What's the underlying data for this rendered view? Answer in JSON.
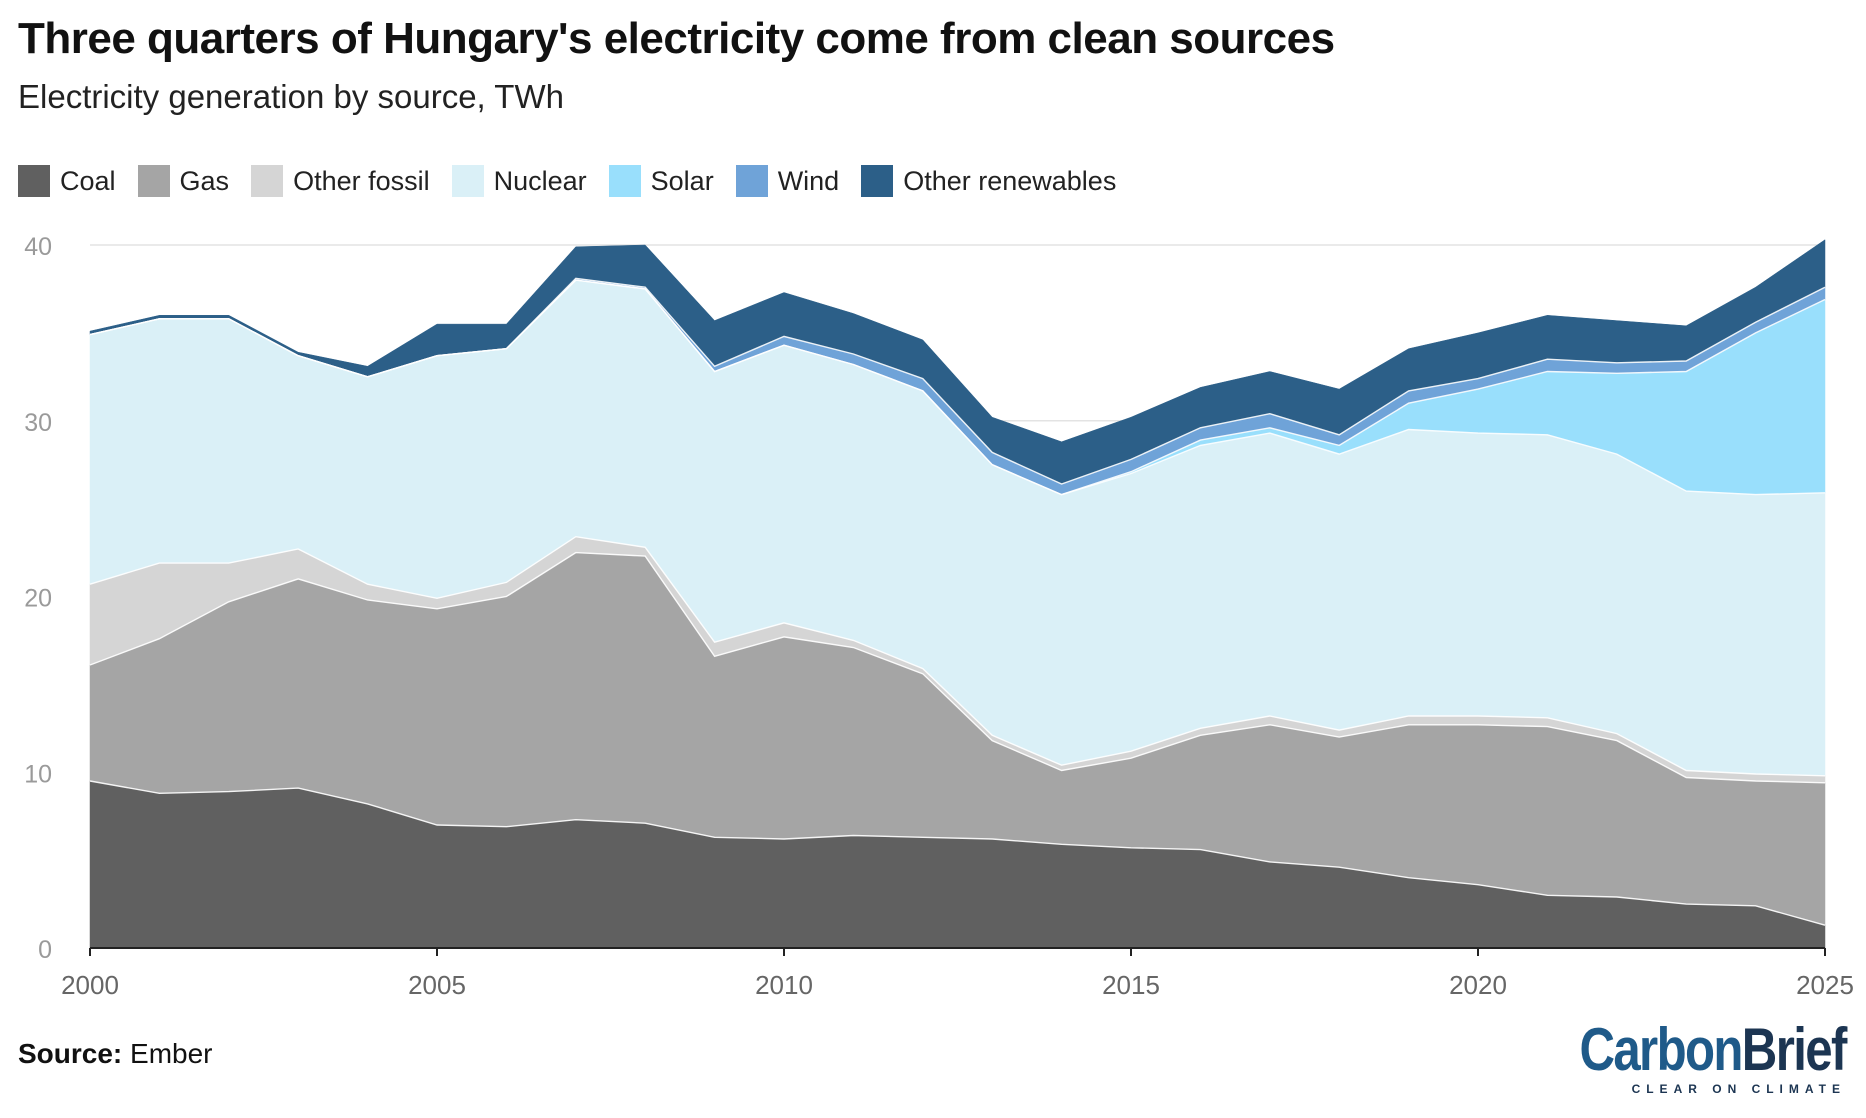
{
  "title": "Three quarters of Hungary's electricity come from clean sources",
  "subtitle": "Electricity generation by source, TWh",
  "source_label": "Source:",
  "source_value": "Ember",
  "logo": {
    "part1": "Carbon",
    "part2": "Brief",
    "tagline": "CLEAR ON CLIMATE"
  },
  "chart_data": {
    "type": "area",
    "stacked": true,
    "x": [
      2000,
      2001,
      2002,
      2003,
      2004,
      2005,
      2006,
      2007,
      2008,
      2009,
      2010,
      2011,
      2012,
      2013,
      2014,
      2015,
      2016,
      2017,
      2018,
      2019,
      2020,
      2021,
      2022,
      2023,
      2024,
      2025
    ],
    "ylim": [
      0,
      40
    ],
    "xlim": [
      2000,
      2025
    ],
    "y_ticks": [
      0,
      10,
      20,
      30,
      40
    ],
    "x_ticks": [
      2000,
      2005,
      2010,
      2015,
      2020,
      2025
    ],
    "grid": true,
    "legend_position": "top-left",
    "series": [
      {
        "name": "Coal",
        "color": "#606060",
        "values": [
          9.5,
          8.8,
          8.9,
          9.1,
          8.2,
          7.0,
          6.9,
          7.3,
          7.1,
          6.3,
          6.2,
          6.4,
          6.3,
          6.2,
          5.9,
          5.7,
          5.6,
          4.9,
          4.6,
          4.0,
          3.6,
          3.0,
          2.9,
          2.5,
          2.4,
          1.3
        ]
      },
      {
        "name": "Gas",
        "color": "#a5a5a5",
        "values": [
          6.6,
          8.8,
          10.8,
          11.9,
          11.6,
          12.3,
          13.1,
          15.2,
          15.2,
          10.3,
          11.5,
          10.7,
          9.3,
          5.6,
          4.2,
          5.1,
          6.5,
          7.8,
          7.4,
          8.7,
          9.1,
          9.6,
          8.9,
          7.2,
          7.1,
          8.1
        ]
      },
      {
        "name": "Other fossil",
        "color": "#d5d5d5",
        "values": [
          4.6,
          4.3,
          2.2,
          1.7,
          0.9,
          0.6,
          0.8,
          0.9,
          0.5,
          0.8,
          0.8,
          0.4,
          0.3,
          0.3,
          0.3,
          0.4,
          0.4,
          0.5,
          0.4,
          0.5,
          0.5,
          0.5,
          0.4,
          0.4,
          0.4,
          0.4
        ]
      },
      {
        "name": "Nuclear",
        "color": "#daf0f7",
        "values": [
          14.2,
          13.9,
          13.9,
          11.0,
          11.8,
          13.8,
          13.3,
          14.6,
          14.7,
          15.4,
          15.8,
          15.7,
          15.8,
          15.4,
          15.4,
          15.8,
          16.1,
          16.1,
          15.7,
          16.3,
          16.1,
          16.1,
          15.9,
          15.9,
          15.9,
          16.1
        ]
      },
      {
        "name": "Solar",
        "color": "#99dffc",
        "values": [
          0,
          0,
          0,
          0,
          0,
          0,
          0,
          0,
          0,
          0,
          0,
          0,
          0,
          0.0,
          0.0,
          0.1,
          0.3,
          0.3,
          0.5,
          1.5,
          2.5,
          3.6,
          4.6,
          6.8,
          9.2,
          11.0
        ]
      },
      {
        "name": "Wind",
        "color": "#6fa3d8",
        "values": [
          0,
          0,
          0,
          0,
          0,
          0,
          0,
          0.1,
          0.1,
          0.3,
          0.5,
          0.6,
          0.7,
          0.7,
          0.6,
          0.7,
          0.7,
          0.8,
          0.6,
          0.7,
          0.6,
          0.7,
          0.6,
          0.6,
          0.6,
          0.7
        ]
      },
      {
        "name": "Other renewables",
        "color": "#2c5f88",
        "values": [
          0.2,
          0.2,
          0.2,
          0.2,
          0.6,
          1.8,
          1.4,
          1.8,
          2.4,
          2.6,
          2.5,
          2.3,
          2.2,
          2.0,
          2.4,
          2.4,
          2.3,
          2.4,
          2.6,
          2.4,
          2.6,
          2.5,
          2.4,
          2.0,
          2.0,
          2.7
        ]
      }
    ]
  }
}
